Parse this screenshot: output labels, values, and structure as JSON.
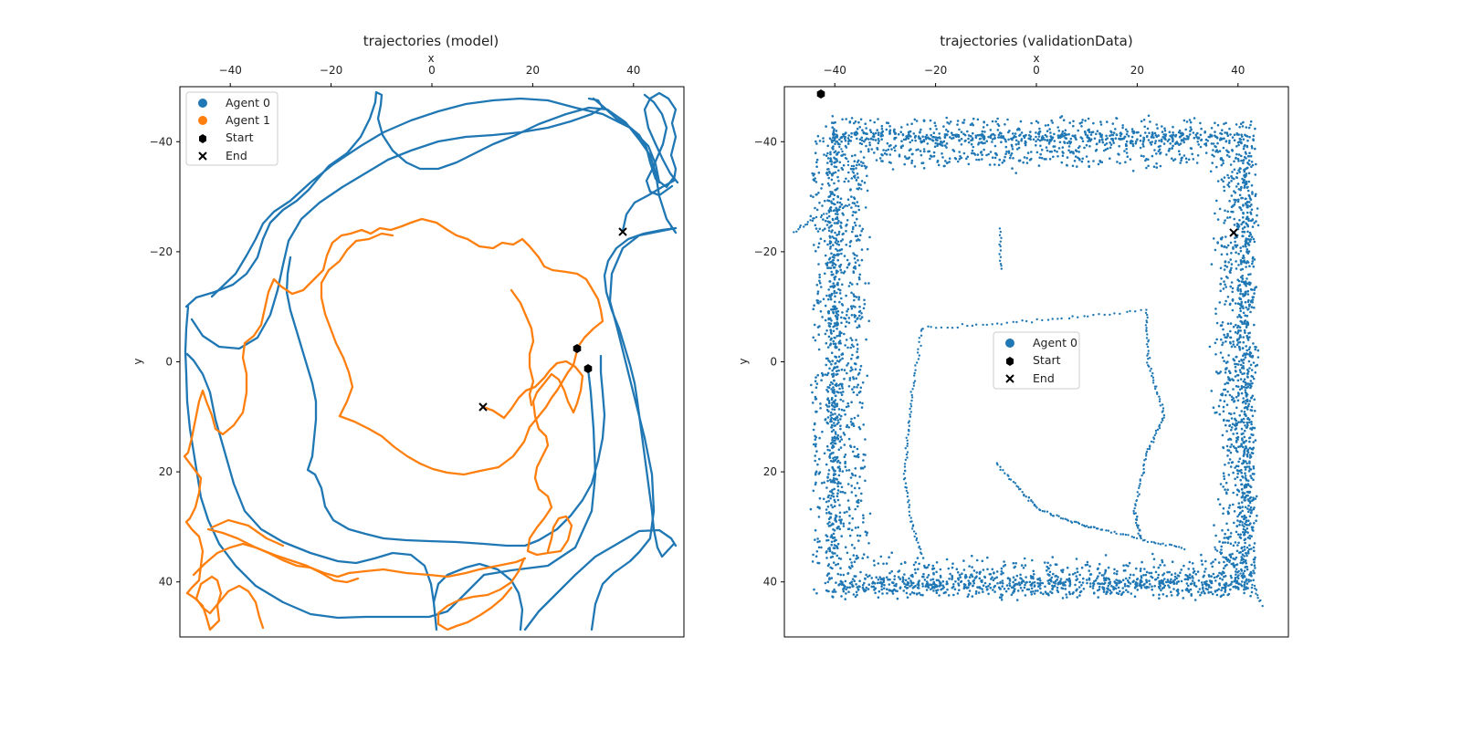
{
  "chart_data": [
    {
      "type": "scatter",
      "title": "trajectories (model)",
      "xlabel": "x",
      "ylabel": "y",
      "xlim": [
        -50,
        50
      ],
      "ylim": [
        50,
        -50
      ],
      "y_inverted": true,
      "x_axis_position": "top",
      "x_ticks": [
        -40,
        -20,
        0,
        20,
        40
      ],
      "y_ticks": [
        -40,
        -20,
        0,
        20,
        40
      ],
      "x_tick_labels": [
        "−40",
        "−20",
        "0",
        "20",
        "40"
      ],
      "y_tick_labels": [
        "−40",
        "−20",
        "0",
        "20",
        "40"
      ],
      "grid": false,
      "legend_position": "top-left",
      "legend": [
        {
          "label": "Agent 0",
          "marker": "circle",
          "color": "#1f77b4"
        },
        {
          "label": "Agent 1",
          "marker": "circle",
          "color": "#ff7f0e"
        },
        {
          "label": "Start",
          "marker": "hexagon",
          "color": "#000000"
        },
        {
          "label": "End",
          "marker": "x",
          "color": "#000000"
        }
      ],
      "series": [
        {
          "name": "Agent 0",
          "color": "#1f77b4",
          "style": "line"
        },
        {
          "name": "Agent 1",
          "color": "#ff7f0e",
          "style": "line"
        }
      ],
      "markers": [
        {
          "kind": "start",
          "agent": "Agent 0",
          "x": 31,
          "y": 1
        },
        {
          "kind": "start",
          "agent": "Agent 1",
          "x": 29,
          "y": -2
        },
        {
          "kind": "end",
          "agent": "Agent 0",
          "x": 38,
          "y": -24
        },
        {
          "kind": "end",
          "agent": "Agent 1",
          "x": 10,
          "y": 8
        }
      ]
    },
    {
      "type": "scatter",
      "title": "trajectories (validationData)",
      "xlabel": "x",
      "ylabel": "y",
      "xlim": [
        -50,
        50
      ],
      "ylim": [
        50,
        -50
      ],
      "y_inverted": true,
      "x_axis_position": "top",
      "x_ticks": [
        -40,
        -20,
        0,
        20,
        40
      ],
      "y_ticks": [
        -40,
        -20,
        0,
        20,
        40
      ],
      "x_tick_labels": [
        "−40",
        "−20",
        "0",
        "20",
        "40"
      ],
      "y_tick_labels": [
        "−40",
        "−20",
        "0",
        "20",
        "40"
      ],
      "grid": false,
      "legend_position": "center",
      "legend": [
        {
          "label": "Agent 0",
          "marker": "circle",
          "color": "#1f77b4"
        },
        {
          "label": "Start",
          "marker": "hexagon",
          "color": "#000000"
        },
        {
          "label": "End",
          "marker": "x",
          "color": "#000000"
        }
      ],
      "series": [
        {
          "name": "Agent 0",
          "color": "#1f77b4",
          "style": "points"
        }
      ],
      "markers": [
        {
          "kind": "start",
          "agent": "Agent 0",
          "x": -43,
          "y": -48
        },
        {
          "kind": "end",
          "agent": "Agent 0",
          "x": 39,
          "y": -23
        }
      ]
    }
  ]
}
